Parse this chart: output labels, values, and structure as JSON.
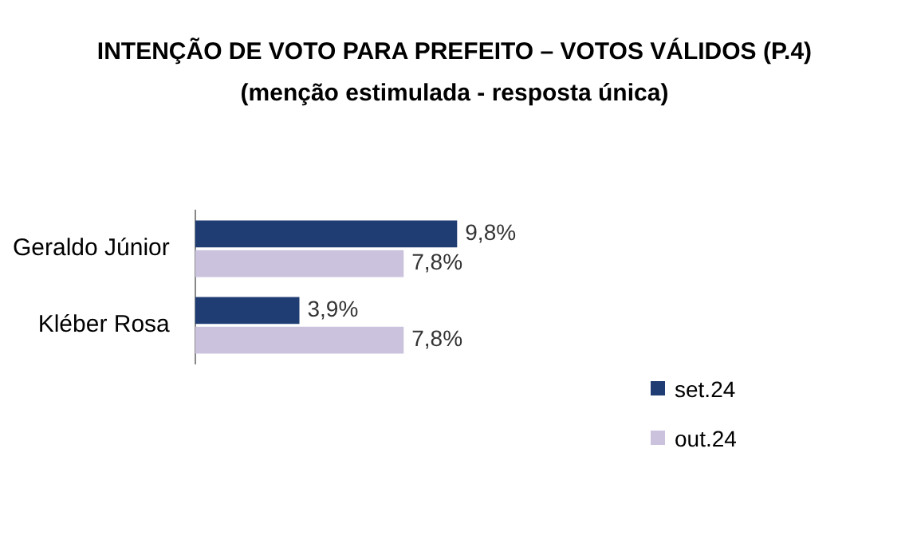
{
  "chart_data": {
    "type": "bar",
    "orientation": "horizontal",
    "title": "INTENÇÃO DE VOTO PARA PREFEITO – VOTOS VÁLIDOS (P.4)",
    "subtitle": "(menção estimulada - resposta única)",
    "categories": [
      "Geraldo Júnior",
      "Kléber Rosa"
    ],
    "series": [
      {
        "name": "set.24",
        "color": "#1f3d73",
        "values": [
          9.8,
          3.9
        ],
        "value_labels": [
          "9,8%",
          "3,9%"
        ]
      },
      {
        "name": "out.24",
        "color": "#cbc3dd",
        "values": [
          7.8,
          7.8
        ],
        "value_labels": [
          "7,8%",
          "7,8%"
        ]
      }
    ],
    "legend": "bottom right",
    "tick_labels": "y"
  }
}
